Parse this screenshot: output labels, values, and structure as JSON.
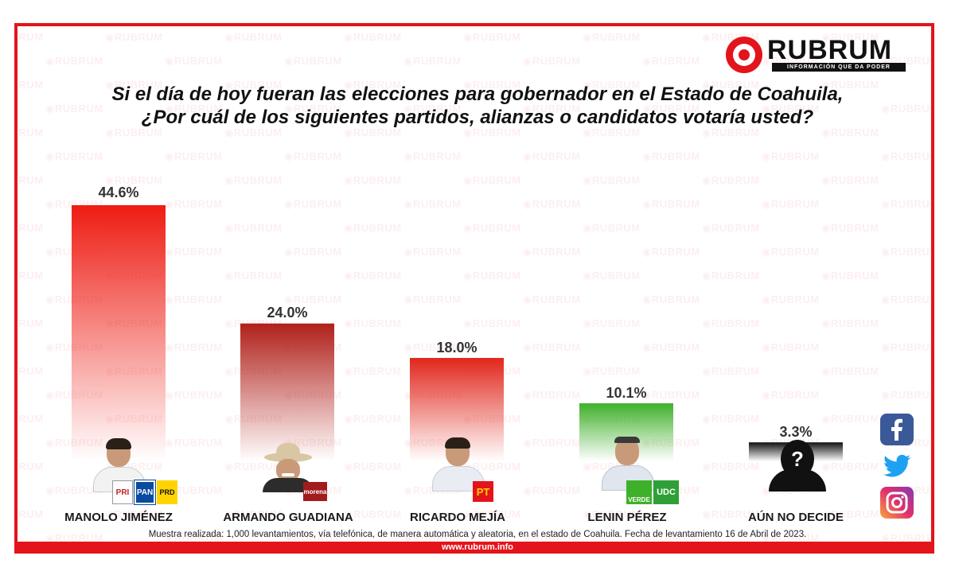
{
  "brand": {
    "logo_word": "RUBRUM",
    "tagline": "INFORMACIÓN QUE DA PODER",
    "watermark": "RUBRUM",
    "url": "www.rubrum.info",
    "color": "#e3141b"
  },
  "title_line1": "Si el día de hoy fueran las elecciones para gobernador en el Estado de Coahuila,",
  "title_line2": "¿Por cuál de los siguientes partidos, alianzas o candidatos votaría usted?",
  "chart_data": {
    "type": "bar",
    "title": "Si el día de hoy fueran las elecciones para gobernador en el Estado de Coahuila, ¿Por cuál de los siguientes partidos, alianzas o candidatos votaría usted?",
    "categories": [
      "MANOLO JIMÉNEZ",
      "ARMANDO GUADIANA",
      "RICARDO MEJÍA",
      "LENIN PÉREZ",
      "AÚN NO DECIDE"
    ],
    "values": [
      44.6,
      24.0,
      18.0,
      10.1,
      3.3
    ],
    "labels": [
      "44.6%",
      "24.0%",
      "18.0%",
      "10.1%",
      "3.3%"
    ],
    "colors": [
      "#ee1c13",
      "#b0201a",
      "#e1261c",
      "#3fb02a",
      "#111111"
    ],
    "xlabel": "",
    "ylabel": "",
    "ylim": [
      0,
      44.6
    ],
    "grid": false,
    "legend": "none"
  },
  "badges": {
    "pri": "PRI",
    "pan": "PAN",
    "prd": "PRD",
    "morena": "morena",
    "pt": "PT",
    "verde": "VERDE",
    "udc": "UDC"
  },
  "unknown_symbol": "?",
  "social": [
    "facebook-icon",
    "twitter-icon",
    "instagram-icon"
  ],
  "footnote": "Muestra realizada: 1,000 levantamientos, vía telefónica, de manera automática y aleatoria, en el estado de Coahuila. Fecha de levantamiento 16 de Abril de 2023."
}
